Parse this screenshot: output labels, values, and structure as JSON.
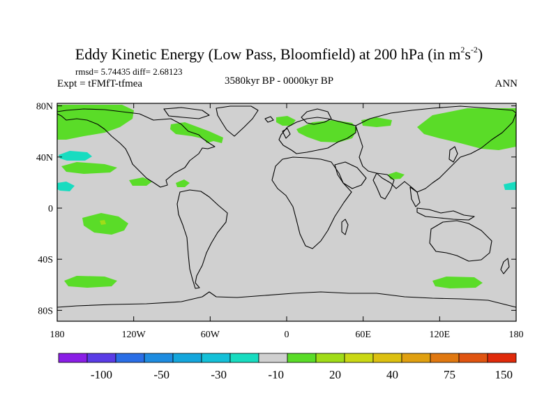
{
  "title": {
    "main": "Eddy Kinetic Energy (Low Pass, Bloomfield) at 200 hPa (in m",
    "sup1": "2",
    "mid": "s",
    "sup2": "-2",
    "close": ")"
  },
  "stats": "rmsd= 5.74435 diff= 2.68123",
  "left_label": "Expt = tFMfT-tfmea",
  "center_label": "3580kyr BP - 0000kyr BP",
  "right_label": "ANN",
  "map": {
    "ocean_color": "#d0d0d0",
    "lat_ticks": [
      {
        "value": 80,
        "label": "80N"
      },
      {
        "value": 40,
        "label": "40N"
      },
      {
        "value": 0,
        "label": "0"
      },
      {
        "value": -40,
        "label": "40S"
      },
      {
        "value": -80,
        "label": "80S"
      }
    ],
    "lon_ticks": [
      {
        "value": -180,
        "label": "180"
      },
      {
        "value": -120,
        "label": "120W"
      },
      {
        "value": -60,
        "label": "60W"
      },
      {
        "value": 0,
        "label": "0"
      },
      {
        "value": 60,
        "label": "60E"
      },
      {
        "value": 120,
        "label": "120E"
      },
      {
        "value": 180,
        "label": "180"
      }
    ]
  },
  "colorbar": {
    "colors": [
      "#8a1ee6",
      "#5a3ce6",
      "#2a6ee6",
      "#1e8ce0",
      "#14a6dc",
      "#14c0d8",
      "#18dcc0",
      "#d0d0d0",
      "#5adc28",
      "#a0dc18",
      "#cad814",
      "#dcc010",
      "#e0a010",
      "#e07810",
      "#e05410",
      "#e02a0a"
    ],
    "labels": [
      {
        "after_box": 2,
        "text": "-100"
      },
      {
        "after_box": 4,
        "text": "-50"
      },
      {
        "after_box": 6,
        "text": "-30"
      },
      {
        "after_box": 8,
        "text": "-10"
      },
      {
        "after_box": 10,
        "text": "20"
      },
      {
        "after_box": 12,
        "text": "40"
      },
      {
        "after_box": 14,
        "text": "75"
      },
      {
        "after_box": 16,
        "text": "150"
      }
    ]
  }
}
